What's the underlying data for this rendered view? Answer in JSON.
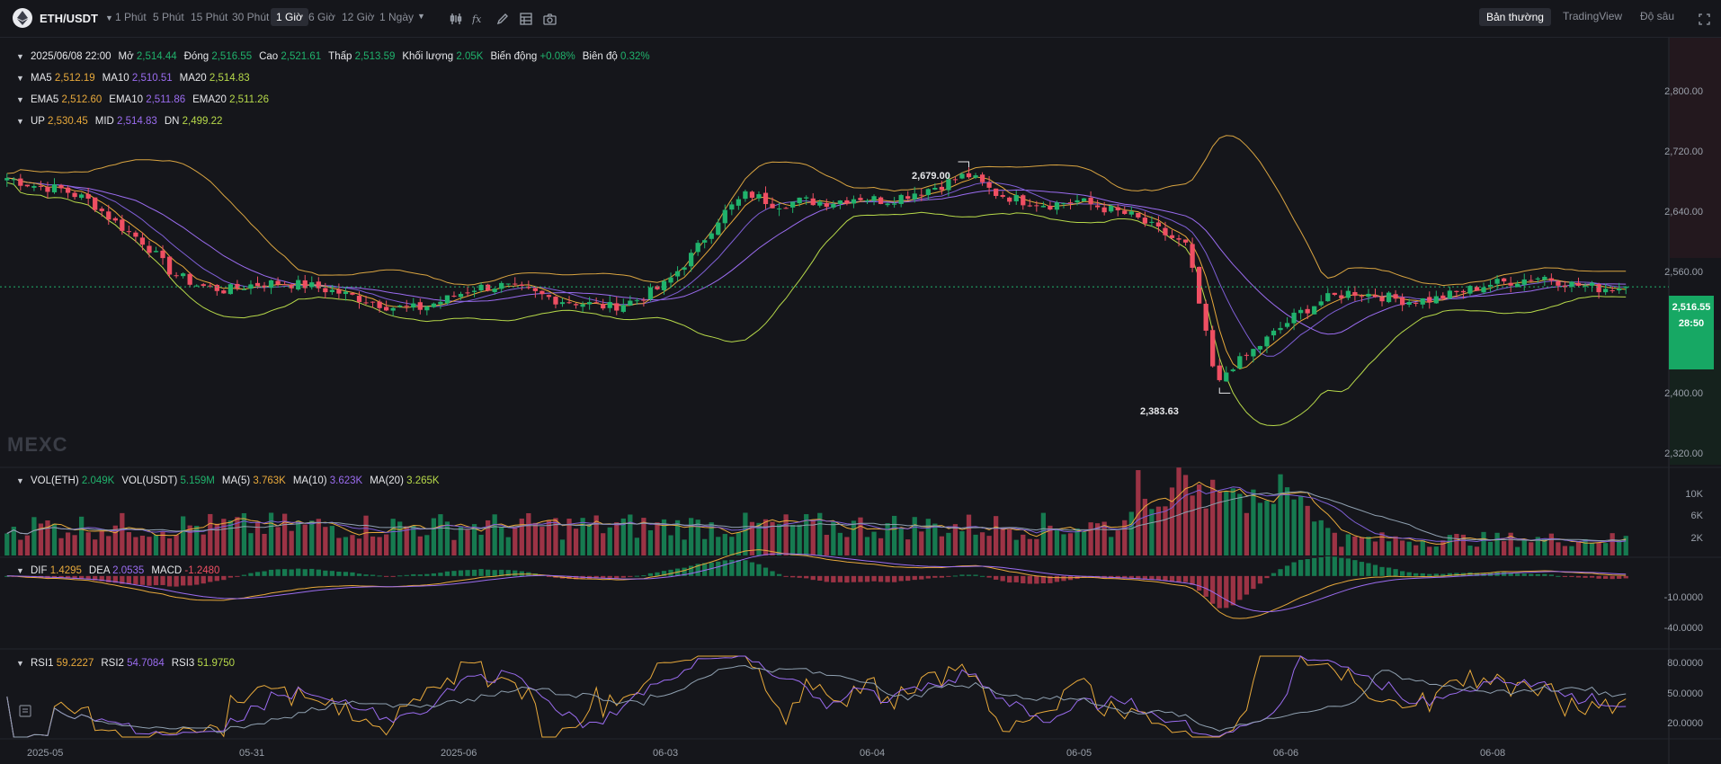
{
  "toolbar": {
    "pair": "ETH/USDT",
    "timeframes": [
      "1 Phút",
      "5 Phút",
      "15 Phút",
      "30 Phút",
      "1 Giờ",
      "6 Giờ",
      "12 Giờ",
      "1 Ngày"
    ],
    "active_timeframe": "1 Giờ",
    "views": [
      "Bản thường",
      "TradingView",
      "Độ sâu"
    ],
    "active_view": "Bản thường",
    "icons": [
      "indicator-bars-icon",
      "fx-icon",
      "pen-icon",
      "layout-grid-icon",
      "camera-icon",
      "expand-icon"
    ]
  },
  "ohlc": {
    "datetime": "2025/06/08 22:00",
    "open_label": "Mở",
    "open": "2,514.44",
    "close_label": "Đóng",
    "close": "2,516.55",
    "high_label": "Cao",
    "high": "2,521.61",
    "low_label": "Thấp",
    "low": "2,513.59",
    "volume_label": "Khối lượng",
    "volume": "2.05K",
    "change_label": "Biến động",
    "change": "+0.08%",
    "amplitude_label": "Biên độ",
    "amplitude": "0.32%"
  },
  "ma": {
    "ma5_label": "MA5",
    "ma5": "2,512.19",
    "ma10_label": "MA10",
    "ma10": "2,510.51",
    "ma20_label": "MA20",
    "ma20": "2,514.83"
  },
  "ema": {
    "ema5_label": "EMA5",
    "ema5": "2,512.60",
    "ema10_label": "EMA10",
    "ema10": "2,511.86",
    "ema20_label": "EMA20",
    "ema20": "2,511.26"
  },
  "boll": {
    "up_label": "UP",
    "up": "2,530.45",
    "mid_label": "MID",
    "mid": "2,514.83",
    "dn_label": "DN",
    "dn": "2,499.22"
  },
  "vol": {
    "eth_label": "VOL(ETH)",
    "eth": "2.049K",
    "usdt_label": "VOL(USDT)",
    "usdt": "5.159M",
    "ma5_label": "MA(5)",
    "ma5": "3.763K",
    "ma10_label": "MA(10)",
    "ma10": "3.623K",
    "ma20_label": "MA(20)",
    "ma20": "3.265K"
  },
  "macd": {
    "dif_label": "DIF",
    "dif": "1.4295",
    "dea_label": "DEA",
    "dea": "2.0535",
    "macd_label": "MACD",
    "macd": "-1.2480"
  },
  "rsi": {
    "rsi1_label": "RSI1",
    "rsi1": "59.2227",
    "rsi2_label": "RSI2",
    "rsi2": "54.7084",
    "rsi3_label": "RSI3",
    "rsi3": "51.9750"
  },
  "price_axis": [
    "2,800.00",
    "2,720.00",
    "2,640.00",
    "2,560.00",
    "2,400.00",
    "2,320.00"
  ],
  "vol_axis": [
    "10K",
    "6K",
    "2K"
  ],
  "macd_axis": [
    "-10.0000",
    "-40.0000"
  ],
  "rsi_axis": [
    "80.0000",
    "50.0000",
    "20.0000"
  ],
  "x_axis": [
    "2025-05",
    "05-31",
    "2025-06",
    "06-03",
    "06-04",
    "06-05",
    "06-06",
    "06-08"
  ],
  "last_price": {
    "price": "2,516.55",
    "countdown": "28:50"
  },
  "high_marker": "2,679.00",
  "low_marker": "2,383.63",
  "watermark": "MEXC",
  "colors": {
    "up": "#20b26c",
    "down": "#ef4f63",
    "ma5": "#e8a93b",
    "ma10": "#9b6cf0",
    "ma20": "#b7d94a",
    "boll": "#d9a441",
    "accent": "#17a864"
  },
  "chart_data": {
    "type": "candlestick",
    "symbol": "ETH/USDT",
    "interval": "1 Giờ",
    "close_path": [
      2660,
      2650,
      2645,
      2630,
      2600,
      2575,
      2535,
      2518,
      2512,
      2520,
      2522,
      2518,
      2510,
      2500,
      2490,
      2488,
      2500,
      2515,
      2518,
      2510,
      2500,
      2495,
      2490,
      2500,
      2520,
      2560,
      2610,
      2640,
      2625,
      2630,
      2628,
      2635,
      2630,
      2640,
      2650,
      2665,
      2640,
      2630,
      2625,
      2630,
      2620,
      2610,
      2590,
      2570,
      2400,
      2420,
      2450,
      2480,
      2500,
      2510,
      2505,
      2498,
      2500,
      2510,
      2520,
      2525,
      2530,
      2520,
      2515,
      2516
    ],
    "high": 2679.0,
    "low": 2383.63,
    "last_close": 2516.55,
    "y_range": [
      2300,
      2840
    ],
    "volume_range": [
      0,
      14000
    ],
    "macd_range": [
      -55,
      12
    ],
    "rsi_range": [
      0,
      100
    ]
  }
}
